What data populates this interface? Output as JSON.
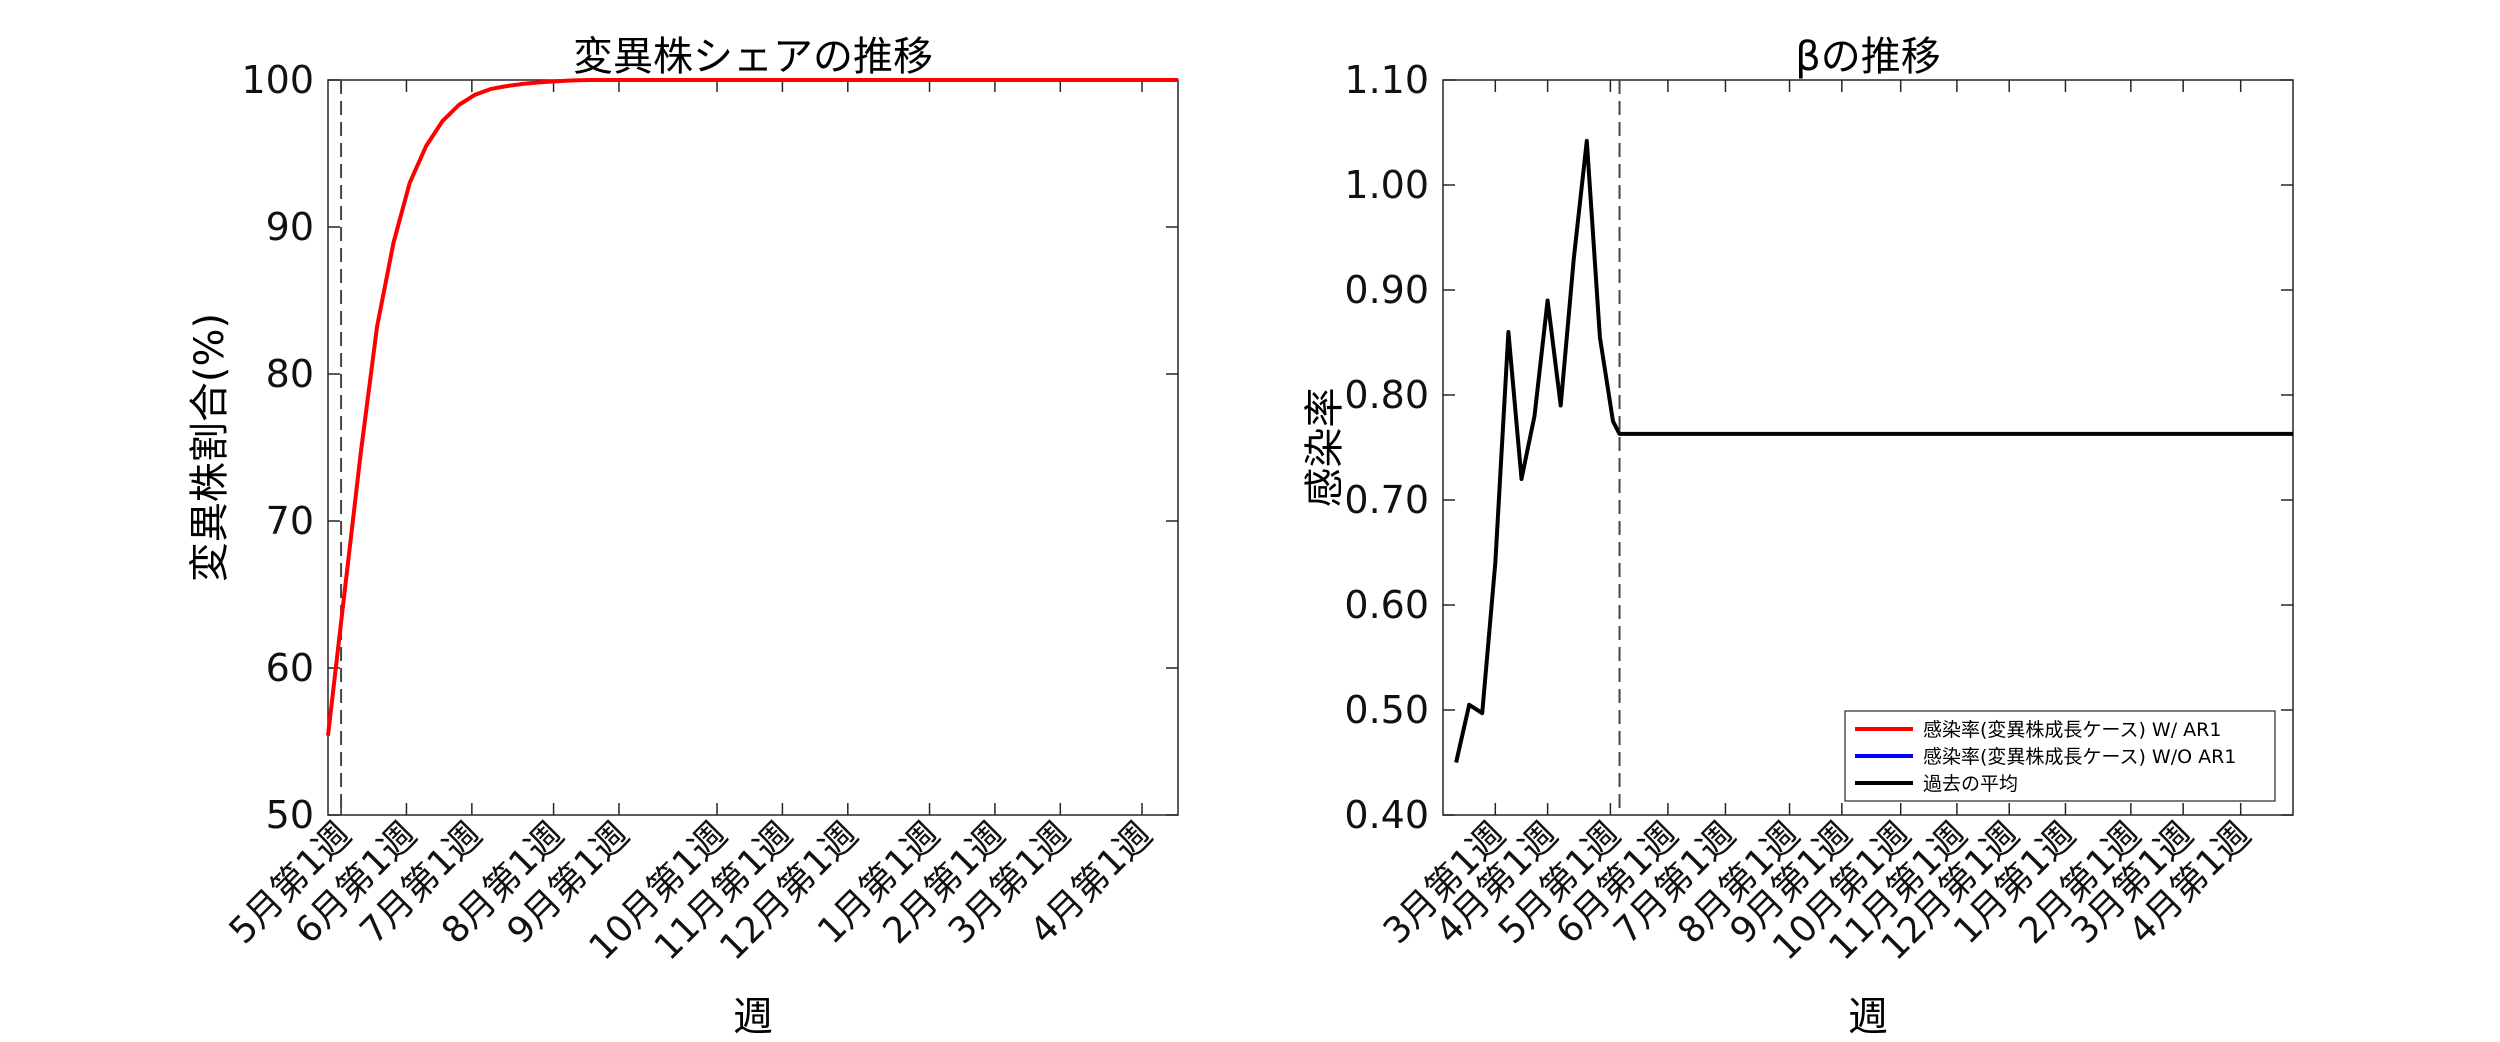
{
  "charts": [
    {
      "type": "line",
      "title": "変異株シェアの推移",
      "xlabel": "週",
      "ylabel": "変異株割合(%)",
      "ylim": [
        50,
        100
      ],
      "yticks": [
        50,
        60,
        70,
        80,
        90,
        100
      ],
      "ytick_labels": [
        "50",
        "60",
        "70",
        "80",
        "90",
        "100"
      ],
      "xlim": [
        0,
        52
      ],
      "xticks": [
        0.8,
        4.8,
        8.8,
        13.8,
        17.8,
        23.8,
        27.8,
        31.8,
        36.8,
        40.8,
        44.8,
        49.8
      ],
      "xtick_labels": [
        "5月第1週",
        "6月第1週",
        "7月第1週",
        "8月第1週",
        "9月第1週",
        "10月第1週",
        "11月第1週",
        "12月第1週",
        "1月第1週",
        "2月第1週",
        "3月第1週",
        "4月第1週"
      ],
      "vline_x": 0.8,
      "series": [
        {
          "color": "#ff0000",
          "x": [
            0,
            1,
            2,
            3,
            4,
            5,
            6,
            7,
            8,
            9,
            10,
            11,
            12,
            13,
            14,
            15,
            16,
            52
          ],
          "y": [
            55.4,
            65.0,
            74.6,
            83.2,
            88.9,
            93.0,
            95.5,
            97.2,
            98.3,
            99.0,
            99.4,
            99.6,
            99.75,
            99.85,
            99.92,
            99.97,
            100,
            100
          ]
        }
      ]
    },
    {
      "type": "line",
      "title": "βの推移",
      "xlabel": "週",
      "ylabel": "感染率",
      "ylim": [
        0.4,
        1.1
      ],
      "yticks": [
        0.4,
        0.5,
        0.6,
        0.7,
        0.8,
        0.9,
        1.0,
        1.1
      ],
      "ytick_labels": [
        "0.40",
        "0.50",
        "0.60",
        "0.70",
        "0.80",
        "0.90",
        "1.00",
        "1.10"
      ],
      "xlim": [
        0,
        65
      ],
      "xticks": [
        4,
        8,
        12.8,
        17.2,
        21.6,
        26.5,
        30.5,
        35,
        39.3,
        43.3,
        47.6,
        52.6,
        56.6,
        61
      ],
      "xtick_labels": [
        "3月第1週",
        "4月第1週",
        "5月第1週",
        "6月第1週",
        "7月第1週",
        "8月第1週",
        "9月第1週",
        "10月第1週",
        "11月第1週",
        "12月第1週",
        "1月第1週",
        "2月第1週",
        "3月第1週",
        "4月第1週"
      ],
      "vline_x": 13.5,
      "series": [
        {
          "color": "#000000",
          "x": [
            1,
            2,
            3,
            4,
            5,
            6,
            7,
            8,
            9,
            10,
            11,
            12,
            13,
            13.5,
            65
          ],
          "y": [
            0.45,
            0.505,
            0.497,
            0.64,
            0.86,
            0.72,
            0.78,
            0.89,
            0.79,
            0.93,
            1.042,
            0.855,
            0.775,
            0.763,
            0.763
          ]
        }
      ],
      "legend": {
        "position": "bottom-right",
        "items": [
          {
            "label": "感染率(変異株成長ケース) W/ AR1",
            "color": "#ff0000"
          },
          {
            "label": "感染率(変異株成長ケース) W/O AR1",
            "color": "#0000ff"
          },
          {
            "label": "過去の平均",
            "color": "#000000"
          }
        ]
      }
    }
  ]
}
